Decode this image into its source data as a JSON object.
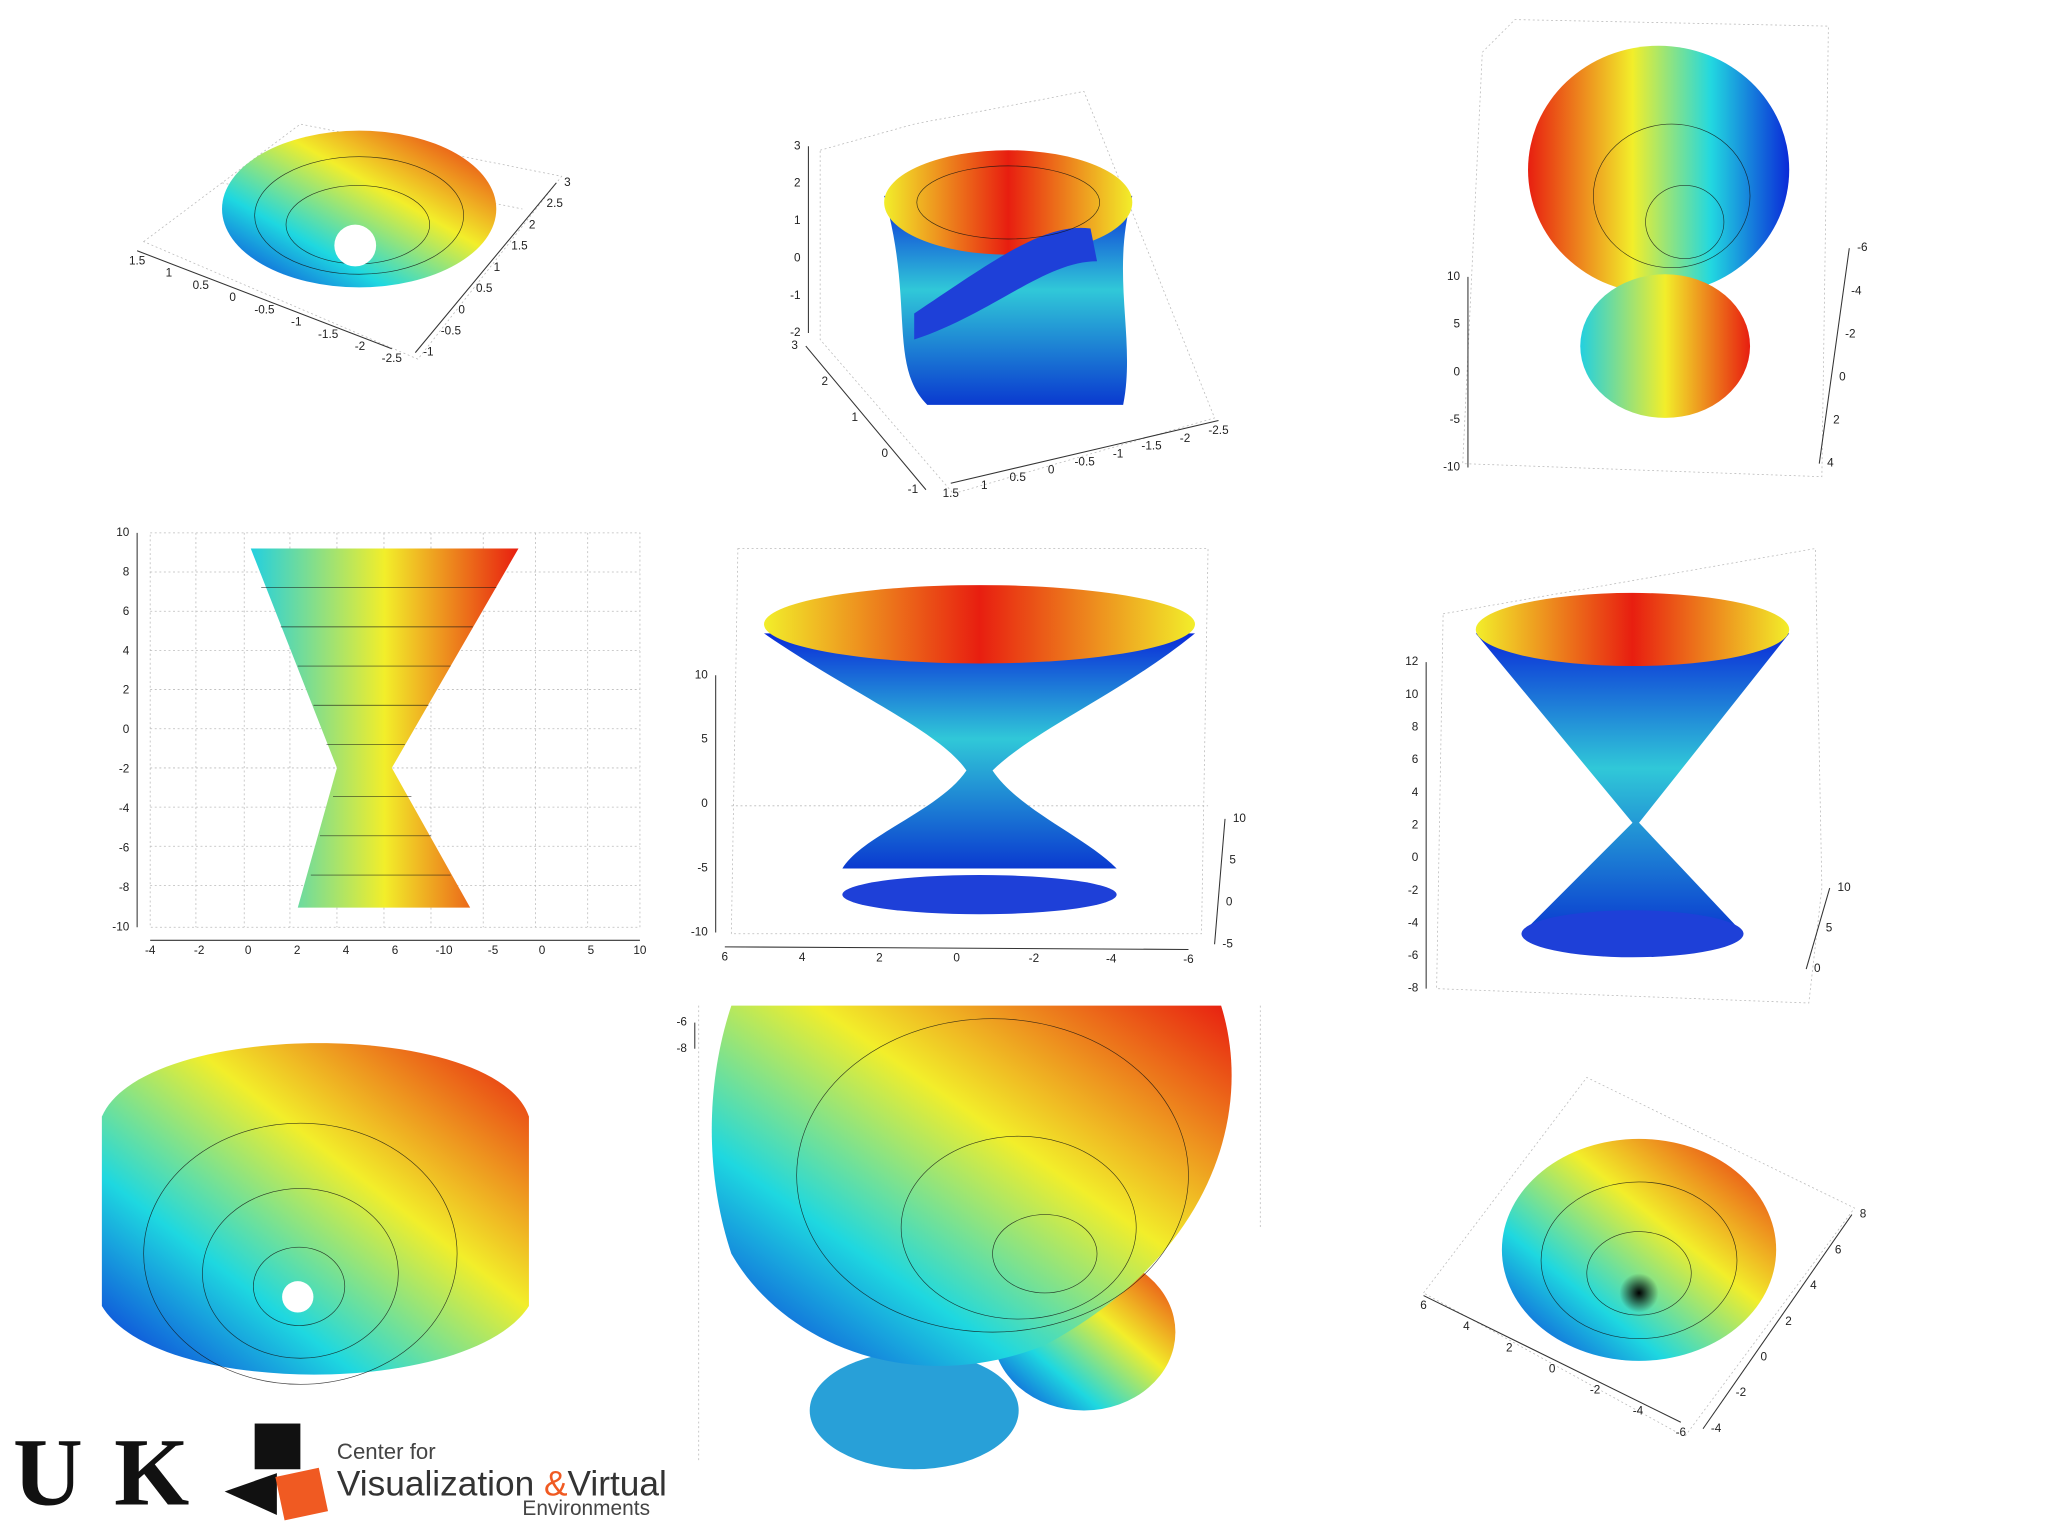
{
  "plots": [
    {
      "axes": [
        [
          "1.5",
          "1",
          "0.5",
          "0",
          "-0.5",
          "-1",
          "-1.5",
          "-2",
          "-2.5"
        ],
        [
          "3",
          "2.5",
          "2",
          "1.5",
          "1",
          "0.5",
          "0",
          "-0.5",
          "-1"
        ]
      ]
    },
    {
      "axes": [
        [
          "3",
          "2",
          "1",
          "0",
          "-1",
          "-2"
        ],
        [
          "3",
          "2",
          "1",
          "0",
          "-1"
        ],
        [
          "1.5",
          "1",
          "0.5",
          "0",
          "-0.5",
          "-1",
          "-1.5",
          "-2",
          "-2.5"
        ]
      ]
    },
    {
      "axes": [
        [
          "10",
          "5",
          "0",
          "-5",
          "-10"
        ],
        [
          "-6",
          "-4",
          "-2",
          "0",
          "2",
          "4"
        ]
      ]
    },
    {
      "axes": [
        [
          "10",
          "8",
          "6",
          "4",
          "2",
          "0",
          "-2",
          "-4",
          "-6",
          "-8",
          "-10"
        ],
        [
          "-4",
          "-2",
          "0",
          "2",
          "4",
          "6",
          "-10",
          "-5",
          "0",
          "5",
          "10"
        ]
      ]
    },
    {
      "axes": [
        [
          "10",
          "5",
          "0",
          "-5",
          "-10"
        ],
        [
          "6",
          "4",
          "2",
          "0",
          "-2",
          "-4",
          "-6"
        ],
        [
          "10",
          "5",
          "0",
          "-5"
        ]
      ]
    },
    {
      "axes": [
        [
          "12",
          "10",
          "8",
          "6",
          "4",
          "2",
          "0",
          "-2",
          "-4",
          "-6",
          "-8"
        ],
        [
          "10",
          "5",
          "0"
        ]
      ]
    },
    {
      "axes": [
        [
          "-6",
          "-8"
        ]
      ]
    },
    {
      "axes": [
        [
          "6",
          "4",
          "2",
          "0",
          "-2",
          "-4",
          "-6"
        ],
        [
          "8",
          "6",
          "4",
          "2",
          "0",
          "-2",
          "-4"
        ]
      ]
    }
  ],
  "logo": {
    "uk": "UK",
    "line1": "Center for",
    "word1": "Visualization",
    "amp": "&",
    "word2": "Virtual",
    "line3": "Environments"
  }
}
